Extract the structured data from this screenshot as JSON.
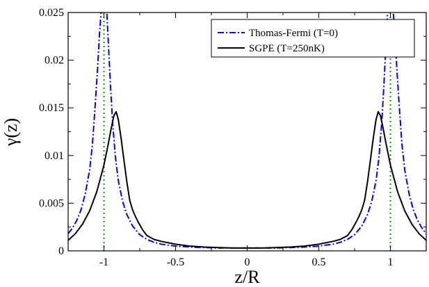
{
  "chart_data": {
    "type": "line",
    "xlabel": "z/R",
    "ylabel": "γ(z)",
    "xlim": [
      -1.25,
      1.25
    ],
    "ylim": [
      0,
      0.025
    ],
    "x_ticks": [
      -1,
      -0.5,
      0,
      0.5,
      1
    ],
    "x_tick_labels": [
      "-1",
      "-0.5",
      "0",
      "0.5",
      "1"
    ],
    "y_ticks": [
      0,
      0.005,
      0.01,
      0.015,
      0.02,
      0.025
    ],
    "y_tick_labels": [
      "0",
      "0.005",
      "0.01",
      "0.015",
      "0.02",
      "0.025"
    ],
    "grid": false,
    "legend_position": "top-right",
    "series": [
      {
        "name": "Thomas-Fermi (T=0)",
        "color": "#0000ff",
        "style": "dash-dot",
        "x": [
          -1.25,
          -1.22,
          -1.19,
          -1.16,
          -1.13,
          -1.1,
          -1.08,
          -1.06,
          -1.045,
          -1.03,
          -1.02,
          -1.012,
          -1.005,
          null,
          -0.995,
          -0.988,
          -0.98,
          -0.97,
          -0.955,
          -0.94,
          -0.92,
          -0.9,
          -0.87,
          -0.84,
          -0.8,
          -0.75,
          -0.7,
          -0.65,
          -0.6,
          -0.5,
          -0.4,
          -0.3,
          -0.2,
          -0.1,
          0,
          0.1,
          0.2,
          0.3,
          0.4,
          0.5,
          0.6,
          0.65,
          0.7,
          0.75,
          0.8,
          0.84,
          0.87,
          0.9,
          0.92,
          0.94,
          0.955,
          0.97,
          0.98,
          0.988,
          0.995,
          null,
          1.005,
          1.012,
          1.02,
          1.03,
          1.045,
          1.06,
          1.08,
          1.1,
          1.13,
          1.16,
          1.19,
          1.22,
          1.25
        ],
        "y": [
          0.0018,
          0.0024,
          0.0032,
          0.0043,
          0.006,
          0.0085,
          0.0112,
          0.0155,
          0.019,
          0.023,
          0.025,
          0.026,
          0.026,
          null,
          0.026,
          0.026,
          0.025,
          0.022,
          0.0175,
          0.0135,
          0.0098,
          0.0074,
          0.0052,
          0.0038,
          0.0026,
          0.0017,
          0.0012,
          0.0009,
          0.0007,
          0.0005,
          0.0004,
          0.00035,
          0.0003,
          0.0003,
          0.0003,
          0.0003,
          0.0003,
          0.00035,
          0.0004,
          0.0005,
          0.0007,
          0.0009,
          0.0012,
          0.0017,
          0.0026,
          0.0038,
          0.0052,
          0.0074,
          0.0098,
          0.0135,
          0.0175,
          0.022,
          0.025,
          0.026,
          0.026,
          null,
          0.026,
          0.026,
          0.025,
          0.023,
          0.019,
          0.0155,
          0.0112,
          0.0085,
          0.006,
          0.0043,
          0.0032,
          0.0024,
          0.0018
        ]
      },
      {
        "name": "SGPE (T=250nK)",
        "color": "#000000",
        "style": "solid",
        "x": [
          -1.25,
          -1.2,
          -1.15,
          -1.1,
          -1.05,
          -1.0,
          -0.97,
          -0.95,
          -0.93,
          -0.915,
          -0.9,
          -0.88,
          -0.86,
          -0.84,
          -0.82,
          -0.8,
          -0.78,
          -0.76,
          -0.73,
          -0.7,
          -0.65,
          -0.6,
          -0.5,
          -0.4,
          -0.3,
          -0.2,
          -0.1,
          0,
          0.1,
          0.2,
          0.3,
          0.4,
          0.5,
          0.6,
          0.65,
          0.7,
          0.73,
          0.76,
          0.78,
          0.8,
          0.82,
          0.84,
          0.86,
          0.88,
          0.9,
          0.915,
          0.93,
          0.95,
          0.97,
          1.0,
          1.05,
          1.1,
          1.15,
          1.2,
          1.25
        ],
        "y": [
          0.0011,
          0.0018,
          0.0028,
          0.0042,
          0.0062,
          0.009,
          0.0112,
          0.0128,
          0.0142,
          0.0146,
          0.0138,
          0.0118,
          0.0095,
          0.0072,
          0.0053,
          0.0043,
          0.0036,
          0.003,
          0.0022,
          0.0016,
          0.0012,
          0.001,
          0.0007,
          0.0005,
          0.0004,
          0.00035,
          0.0003,
          0.0003,
          0.0003,
          0.00035,
          0.0004,
          0.0005,
          0.0007,
          0.001,
          0.0012,
          0.0016,
          0.0022,
          0.003,
          0.0036,
          0.0043,
          0.0053,
          0.0072,
          0.0095,
          0.0118,
          0.0138,
          0.0146,
          0.0142,
          0.0128,
          0.0112,
          0.009,
          0.0062,
          0.0042,
          0.0028,
          0.0018,
          0.0011
        ]
      }
    ],
    "reference_lines": [
      {
        "x": -1,
        "color": "#00a000",
        "style": "dotted"
      },
      {
        "x": 1,
        "color": "#00a000",
        "style": "dotted"
      }
    ]
  }
}
